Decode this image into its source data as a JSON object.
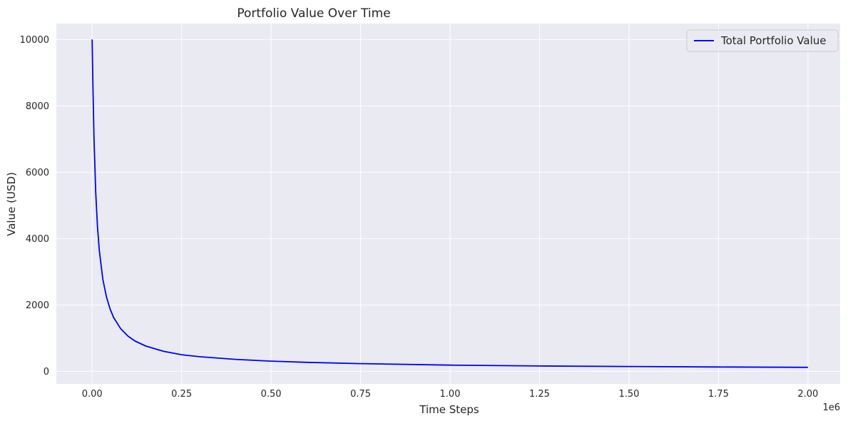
{
  "chart_data": {
    "type": "line",
    "title": "Portfolio Value Over Time",
    "xlabel": "Time Steps",
    "ylabel": "Value (USD)",
    "x_offset_label": "1e6",
    "xlim": [
      -0.1,
      2.09
    ],
    "ylim": [
      -380,
      10480
    ],
    "x_ticks": [
      0.0,
      0.25,
      0.5,
      0.75,
      1.0,
      1.25,
      1.5,
      1.75,
      2.0
    ],
    "x_tick_labels": [
      "0.00",
      "0.25",
      "0.50",
      "0.75",
      "1.00",
      "1.25",
      "1.50",
      "1.75",
      "2.00"
    ],
    "y_ticks": [
      0,
      2000,
      4000,
      6000,
      8000,
      10000
    ],
    "y_tick_labels": [
      "0",
      "2000",
      "4000",
      "6000",
      "8000",
      "10000"
    ],
    "grid": true,
    "legend_position": "top-right",
    "series": [
      {
        "name": "Total Portfolio Value",
        "color": "#0000ff",
        "x": [
          0.0,
          0.002,
          0.005,
          0.01,
          0.015,
          0.02,
          0.03,
          0.04,
          0.05,
          0.06,
          0.08,
          0.1,
          0.12,
          0.15,
          0.2,
          0.25,
          0.3,
          0.4,
          0.5,
          0.6,
          0.75,
          1.0,
          1.25,
          1.5,
          1.75,
          2.0
        ],
        "values": [
          10000,
          8700,
          7100,
          5400,
          4350,
          3650,
          2770,
          2240,
          1880,
          1620,
          1280,
          1060,
          910,
          760,
          600,
          500,
          440,
          360,
          305,
          270,
          230,
          185,
          160,
          145,
          130,
          118
        ]
      }
    ]
  }
}
